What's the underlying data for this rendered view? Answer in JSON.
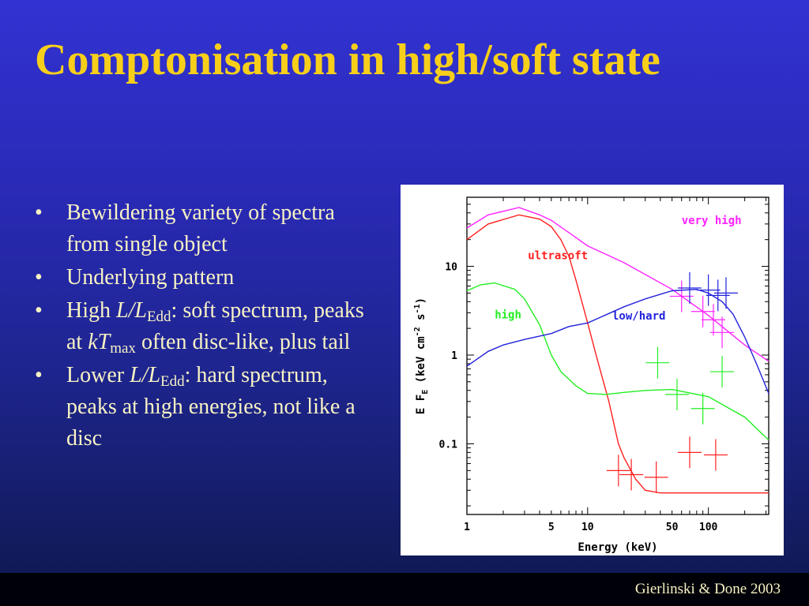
{
  "title": "Comptonisation in high/soft state",
  "bullets": [
    {
      "text": "Bewildering variety of spectra from single object"
    },
    {
      "text": "Underlying pattern"
    },
    {
      "pre": "High ",
      "i1": "L",
      "slash": "/",
      "i2": "L",
      "sub": "Edd",
      "mid": ": soft spectrum, peaks at ",
      "i3": "kT",
      "sub2": "max",
      "post": " often disc-like, plus tail"
    },
    {
      "pre": "Lower ",
      "i1": "L",
      "slash": "/",
      "i2": "L",
      "sub": "Edd",
      "post": ": hard spectrum, peaks at high energies, not like a disc"
    }
  ],
  "bullet_glyph": "•",
  "citation": "Gierlinski & Done 2003",
  "chart_data": {
    "type": "line",
    "xlabel": "Energy (keV)",
    "ylabel": "E F_E (keV cm^-2 s^-1)",
    "ylabel_parts": {
      "e": "E F",
      "sub": "E",
      "unit": " (keV cm",
      "sup1": "-2",
      "s": " s",
      "sup2": "-1",
      "close": ")"
    },
    "xscale": "log",
    "yscale": "log",
    "xlim": [
      1,
      316
    ],
    "ylim": [
      0.016,
      60
    ],
    "xticks": [
      {
        "v": 1,
        "label": "1"
      },
      {
        "v": 5,
        "label": "5"
      },
      {
        "v": 10,
        "label": "10"
      },
      {
        "v": 50,
        "label": "50"
      },
      {
        "v": 100,
        "label": "100"
      }
    ],
    "yticks": [
      {
        "v": 0.1,
        "label": "0.1"
      },
      {
        "v": 1,
        "label": "1"
      },
      {
        "v": 10,
        "label": "10"
      }
    ],
    "series": [
      {
        "name": "very high",
        "color": "#ff22ff",
        "label_at": [
          60,
          30
        ],
        "x": [
          1,
          1.5,
          2.7,
          4,
          5,
          7,
          10,
          20,
          50,
          100,
          200,
          316
        ],
        "y": [
          27,
          38,
          46,
          38,
          33,
          24,
          17,
          11,
          5.5,
          2.8,
          1.3,
          0.85
        ],
        "points": [
          {
            "x": 60,
            "y": 4.6
          },
          {
            "x": 90,
            "y": 3.1
          },
          {
            "x": 110,
            "y": 2.5
          },
          {
            "x": 130,
            "y": 1.8
          }
        ]
      },
      {
        "name": "ultrasoft",
        "color": "#ff2020",
        "label_at": [
          3.2,
          12
        ],
        "x": [
          1,
          1.5,
          2.7,
          4,
          5,
          6,
          7,
          8,
          10,
          12,
          15,
          18,
          20,
          25,
          30,
          40,
          316
        ],
        "y": [
          20,
          30,
          38,
          34,
          28,
          20,
          13,
          7,
          2.3,
          0.9,
          0.3,
          0.1,
          0.07,
          0.04,
          0.03,
          0.028,
          0.028
        ],
        "points": [
          {
            "x": 18,
            "y": 0.05
          },
          {
            "x": 23,
            "y": 0.045
          },
          {
            "x": 37,
            "y": 0.042
          },
          {
            "x": 70,
            "y": 0.08
          },
          {
            "x": 115,
            "y": 0.075
          }
        ]
      },
      {
        "name": "high",
        "color": "#22ee22",
        "label_at": [
          1.7,
          2.6
        ],
        "x": [
          1,
          1.3,
          1.7,
          2.5,
          3,
          4,
          5,
          6,
          8,
          10,
          14,
          20,
          30,
          50,
          100,
          200,
          316
        ],
        "y": [
          5.3,
          6.2,
          6.5,
          5.5,
          4.3,
          2.2,
          1.0,
          0.65,
          0.45,
          0.37,
          0.36,
          0.38,
          0.4,
          0.41,
          0.34,
          0.2,
          0.11
        ],
        "points": [
          {
            "x": 38,
            "y": 0.82
          },
          {
            "x": 55,
            "y": 0.36
          },
          {
            "x": 90,
            "y": 0.25
          },
          {
            "x": 130,
            "y": 0.65
          }
        ]
      },
      {
        "name": "low/hard",
        "color": "#2222dd",
        "label_at": [
          16,
          2.5
        ],
        "x": [
          1,
          1.5,
          2,
          3,
          5,
          7,
          10,
          20,
          30,
          50,
          80,
          100,
          130,
          160,
          200,
          250,
          316
        ],
        "y": [
          0.75,
          1.1,
          1.3,
          1.5,
          1.75,
          2.1,
          2.3,
          3.5,
          4.3,
          5.3,
          5.5,
          5.0,
          4.0,
          2.9,
          1.6,
          0.8,
          0.37
        ],
        "points": [
          {
            "x": 70,
            "y": 5.7
          },
          {
            "x": 100,
            "y": 5.4
          },
          {
            "x": 120,
            "y": 4.7
          },
          {
            "x": 140,
            "y": 5.0
          }
        ]
      }
    ]
  }
}
